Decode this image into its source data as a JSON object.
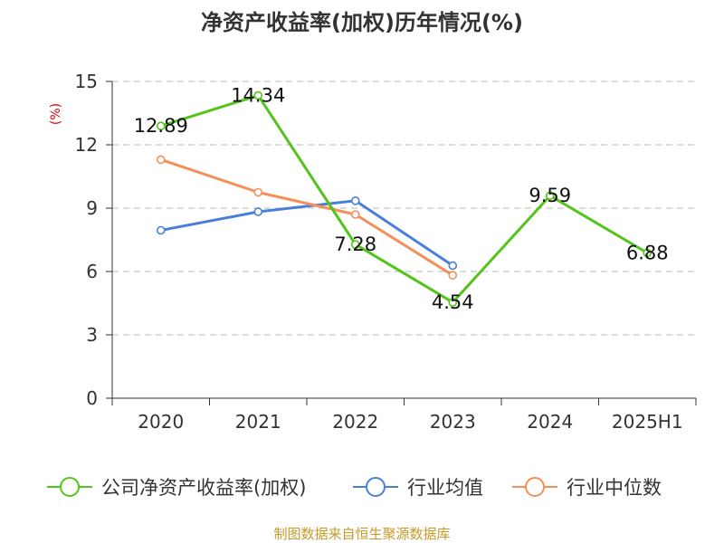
{
  "chart_data": {
    "type": "line",
    "title": "净资产收益率(加权)历年情况(%)",
    "unit_label": "(%)",
    "categories": [
      "2020",
      "2021",
      "2022",
      "2023",
      "2024",
      "2025H1"
    ],
    "ylim": [
      0,
      15
    ],
    "yticks": [
      0,
      3,
      6,
      9,
      12,
      15
    ],
    "grid": true,
    "legend_position": "bottom",
    "series": [
      {
        "name": "公司净资产收益率(加权)",
        "color": "#52c41a",
        "values": [
          12.89,
          14.34,
          7.28,
          4.54,
          9.59,
          6.88
        ],
        "labels": [
          "12.89",
          "14.34",
          "7.28",
          "4.54",
          "9.59",
          "6.88"
        ]
      },
      {
        "name": "行业均值",
        "color": "#4a7fd9",
        "values": [
          7.95,
          8.83,
          9.35,
          6.28,
          null,
          null
        ]
      },
      {
        "name": "行业中位数",
        "color": "#f58f5a",
        "values": [
          11.3,
          9.75,
          8.7,
          5.82,
          null,
          null
        ]
      }
    ],
    "source": "制图数据来自恒生聚源数据库"
  }
}
